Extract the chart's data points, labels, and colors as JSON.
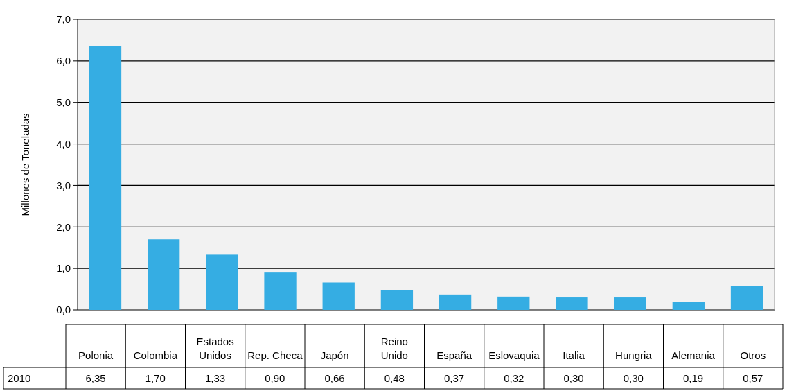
{
  "chart_data": {
    "type": "bar",
    "ylabel": "Millones de Toneladas",
    "categories": [
      "Polonia",
      "Colombia",
      "Estados Unidos",
      "Rep. Checa",
      "Japón",
      "Reino Unido",
      "España",
      "Eslovaquia",
      "Italia",
      "Hungria",
      "Alemania",
      "Otros"
    ],
    "series": [
      {
        "name": "2010",
        "color": "#35ade3",
        "values": [
          6.35,
          1.7,
          1.33,
          0.9,
          0.66,
          0.48,
          0.37,
          0.32,
          0.3,
          0.3,
          0.19,
          0.57
        ],
        "value_labels": [
          "6,35",
          "1,70",
          "1,33",
          "0,90",
          "0,66",
          "0,48",
          "0,37",
          "0,32",
          "0,30",
          "0,30",
          "0,19",
          "0,57"
        ]
      }
    ],
    "ylim": [
      0,
      7
    ],
    "yticks": [
      {
        "value": 0,
        "label": "0,0"
      },
      {
        "value": 1,
        "label": "1,0"
      },
      {
        "value": 2,
        "label": "2,0"
      },
      {
        "value": 3,
        "label": "3,0"
      },
      {
        "value": 4,
        "label": "4,0"
      },
      {
        "value": 5,
        "label": "5,0"
      },
      {
        "value": 6,
        "label": "6,0"
      },
      {
        "value": 7,
        "label": "7,0"
      }
    ],
    "grid": "y"
  }
}
